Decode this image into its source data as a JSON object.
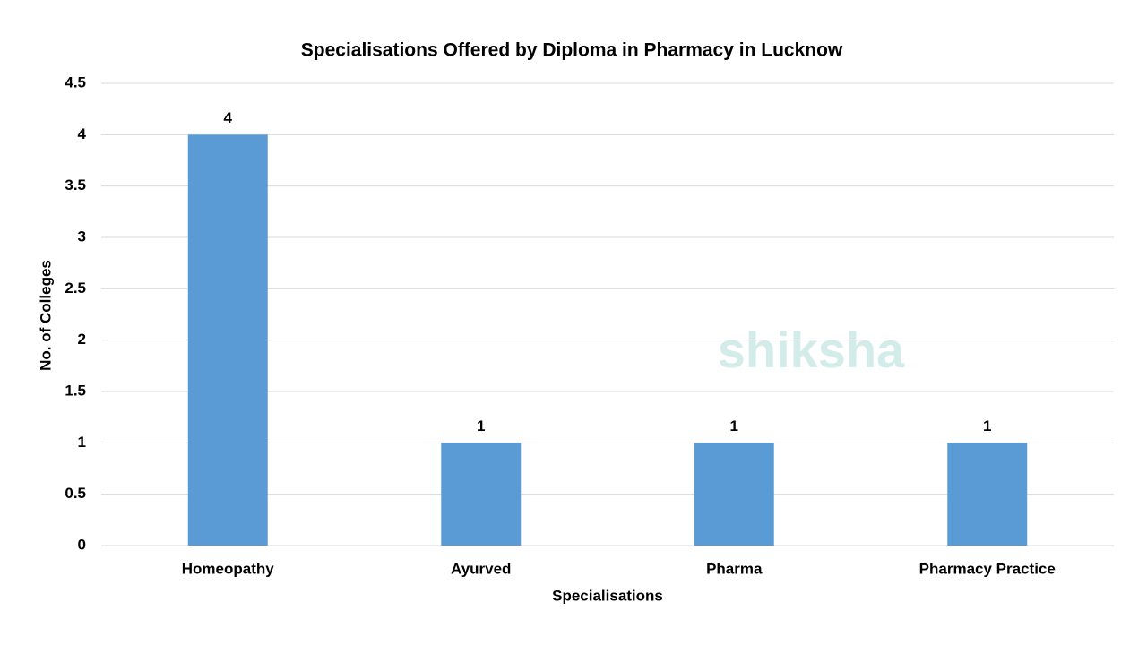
{
  "chart_data": {
    "type": "bar",
    "title": "Specialisations Offered by Diploma in Pharmacy in Lucknow",
    "x_label": "Specialisations",
    "y_label": "No. of Colleges",
    "categories": [
      "Homeopathy",
      "Ayurved",
      "Pharma",
      "Pharmacy Practice"
    ],
    "values": [
      4,
      1,
      1,
      1
    ],
    "color": "#5b9bd5",
    "ylim": [
      0,
      4.5
    ],
    "yticks": [
      0,
      0.5,
      1,
      1.5,
      2,
      2.5,
      3,
      3.5,
      4,
      4.5
    ],
    "grid": true,
    "watermark": "shiksha"
  }
}
